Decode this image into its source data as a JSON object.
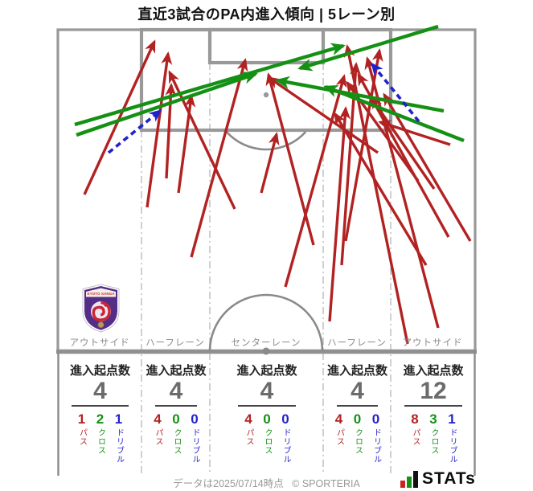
{
  "title": "直近3試合のPA内進入傾向 | 5レーン別",
  "team": {
    "name": "KYOTO SANGA"
  },
  "legend_labels": {
    "pass": "パス",
    "cross": "クロス",
    "dribble": "ドリブル"
  },
  "lanes": [
    {
      "label": "アウトサイド",
      "header": "進入起点数",
      "total": "4",
      "pass": "1",
      "cross": "2",
      "dribble": "1"
    },
    {
      "label": "ハーフレーン",
      "header": "進入起点数",
      "total": "4",
      "pass": "4",
      "cross": "0",
      "dribble": "0"
    },
    {
      "label": "センターレーン",
      "header": "進入起点数",
      "total": "4",
      "pass": "4",
      "cross": "0",
      "dribble": "0"
    },
    {
      "label": "ハーフレーン",
      "header": "進入起点数",
      "total": "4",
      "pass": "4",
      "cross": "0",
      "dribble": "0"
    },
    {
      "label": "アウトサイド",
      "header": "進入起点数",
      "total": "12",
      "pass": "8",
      "cross": "3",
      "dribble": "1"
    }
  ],
  "footer": {
    "data_note": "データは2025/07/14時点",
    "copyright": "© SPORTERIA",
    "stats_word": "STATs"
  },
  "colors": {
    "pass": "#b22222",
    "cross": "#149114",
    "dribble": "#2222cc",
    "pitch": "#999999",
    "lane_line": "#bcbcbc",
    "stats_bars": [
      "#cc2222",
      "#149114",
      "#111111"
    ]
  },
  "chart_data": {
    "type": "table",
    "title": "直近3試合のPA内進入傾向 | 5レーン別",
    "columns": [
      "レーン",
      "進入起点数",
      "パス",
      "クロス",
      "ドリブル"
    ],
    "rows": [
      [
        "アウトサイド",
        4,
        1,
        2,
        1
      ],
      [
        "ハーフレーン",
        4,
        4,
        0,
        0
      ],
      [
        "センターレーン",
        4,
        4,
        0,
        0
      ],
      [
        "ハーフレーン",
        4,
        4,
        0,
        0
      ],
      [
        "アウトサイド",
        12,
        8,
        3,
        1
      ]
    ],
    "arrow_types": {
      "pass": "solid red",
      "cross": "solid green",
      "dribble": "dashed blue"
    },
    "arrows": [
      {
        "type": "pass",
        "from": [
          105,
          242
        ],
        "to": [
          192,
          52
        ]
      },
      {
        "type": "pass",
        "from": [
          183,
          258
        ],
        "to": [
          209,
          67
        ]
      },
      {
        "type": "pass",
        "from": [
          207,
          222
        ],
        "to": [
          213,
          106
        ]
      },
      {
        "type": "pass",
        "from": [
          222,
          240
        ],
        "to": [
          238,
          120
        ]
      },
      {
        "type": "pass",
        "from": [
          238,
          320
        ],
        "to": [
          305,
          75
        ]
      },
      {
        "type": "pass",
        "from": [
          325,
          240
        ],
        "to": [
          344,
          167
        ]
      },
      {
        "type": "pass",
        "from": [
          390,
          305
        ],
        "to": [
          334,
          93
        ]
      },
      {
        "type": "pass",
        "from": [
          292,
          260
        ],
        "to": [
          211,
          90
        ]
      },
      {
        "type": "pass",
        "from": [
          355,
          357
        ],
        "to": [
          428,
          95
        ]
      },
      {
        "type": "pass",
        "from": [
          470,
          190
        ],
        "to": [
          335,
          97
        ]
      },
      {
        "type": "pass",
        "from": [
          430,
          300
        ],
        "to": [
          472,
          63
        ]
      },
      {
        "type": "pass",
        "from": [
          425,
          330
        ],
        "to": [
          443,
          80
        ]
      },
      {
        "type": "pass",
        "from": [
          410,
          400
        ],
        "to": [
          430,
          135
        ]
      },
      {
        "type": "pass",
        "from": [
          507,
          428
        ],
        "to": [
          432,
          58
        ]
      },
      {
        "type": "pass",
        "from": [
          545,
          408
        ],
        "to": [
          457,
          73
        ]
      },
      {
        "type": "pass",
        "from": [
          558,
          295
        ],
        "to": [
          446,
          93
        ]
      },
      {
        "type": "pass",
        "from": [
          520,
          225
        ],
        "to": [
          432,
          103
        ]
      },
      {
        "type": "pass",
        "from": [
          540,
          235
        ],
        "to": [
          462,
          122
        ]
      },
      {
        "type": "pass",
        "from": [
          560,
          180
        ],
        "to": [
          473,
          152
        ]
      },
      {
        "type": "pass",
        "from": [
          585,
          300
        ],
        "to": [
          478,
          118
        ]
      },
      {
        "type": "pass",
        "from": [
          530,
          330
        ],
        "to": [
          417,
          142
        ]
      },
      {
        "type": "cross",
        "from": [
          95,
          168
        ],
        "to": [
          318,
          92
        ]
      },
      {
        "type": "cross",
        "from": [
          93,
          155
        ],
        "to": [
          427,
          57
        ]
      },
      {
        "type": "cross",
        "from": [
          545,
          33
        ],
        "to": [
          373,
          85
        ]
      },
      {
        "type": "cross",
        "from": [
          552,
          138
        ],
        "to": [
          345,
          100
        ]
      },
      {
        "type": "cross",
        "from": [
          577,
          175
        ],
        "to": [
          405,
          108
        ]
      },
      {
        "type": "dribble",
        "from": [
          135,
          190
        ],
        "to": [
          199,
          138
        ]
      },
      {
        "type": "dribble",
        "from": [
          521,
          151
        ],
        "to": [
          463,
          80
        ]
      }
    ]
  }
}
